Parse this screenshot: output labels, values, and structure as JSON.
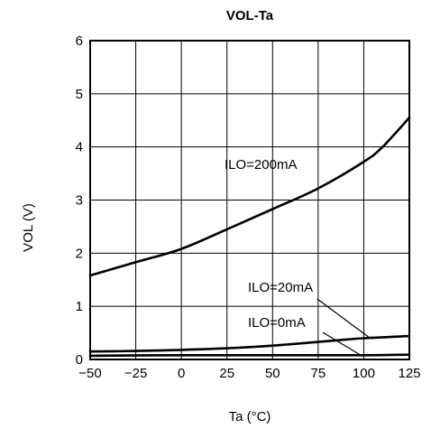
{
  "chart_data": {
    "type": "line",
    "title": "VOL-Ta",
    "xlabel": "Ta (°C)",
    "ylabel": "VOL (V)",
    "xlim": [
      -50,
      125
    ],
    "ylim": [
      0,
      6
    ],
    "x_ticks": [
      "−50",
      "−25",
      "0",
      "25",
      "50",
      "75",
      "100",
      "125"
    ],
    "y_ticks": [
      "0",
      "1",
      "2",
      "3",
      "4",
      "5",
      "6"
    ],
    "grid": true,
    "series": [
      {
        "name": "ILO=200mA",
        "x": [
          -50,
          -25,
          0,
          25,
          50,
          75,
          100,
          110,
          125
        ],
        "y": [
          1.58,
          1.83,
          2.08,
          2.45,
          2.83,
          3.22,
          3.72,
          3.99,
          4.55
        ]
      },
      {
        "name": "ILO=20mA",
        "x": [
          -50,
          -25,
          0,
          25,
          50,
          75,
          100,
          125
        ],
        "y": [
          0.15,
          0.16,
          0.18,
          0.21,
          0.26,
          0.33,
          0.4,
          0.44
        ]
      },
      {
        "name": "ILO=0mA",
        "x": [
          -50,
          0,
          50,
          100,
          125
        ],
        "y": [
          0.07,
          0.08,
          0.08,
          0.08,
          0.09
        ]
      }
    ],
    "annotations": [
      {
        "text": "ILO=200mA",
        "series": "ILO=200mA"
      },
      {
        "text": "ILO=20mA",
        "series": "ILO=20mA"
      },
      {
        "text": "ILO=0mA",
        "series": "ILO=0mA"
      }
    ]
  }
}
